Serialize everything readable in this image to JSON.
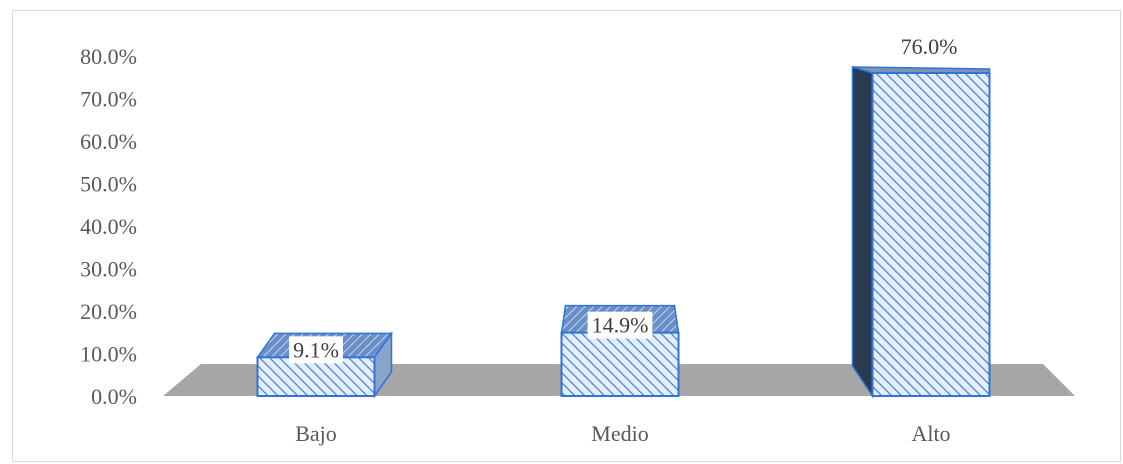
{
  "colors": {
    "bar_stroke": "#2f74d6",
    "bar_fill": "#e6eefb",
    "bar_hatch": "#3d7fe0",
    "bar_side_dark": "#2a3a50",
    "floor": "#a6a6a6",
    "label_bg": "#ffffff"
  },
  "chart_data": {
    "type": "bar",
    "categories": [
      "Bajo",
      "Medio",
      "Alto"
    ],
    "values": [
      9.1,
      14.9,
      76.0
    ],
    "value_labels": [
      "9.1%",
      "14.9%",
      "76.0%"
    ],
    "yticks": [
      "0.0%",
      "10.0%",
      "20.0%",
      "30.0%",
      "40.0%",
      "50.0%",
      "60.0%",
      "70.0%",
      "80.0%"
    ],
    "ylim": [
      0,
      80
    ],
    "grid": false,
    "style": "3d-hatched"
  }
}
